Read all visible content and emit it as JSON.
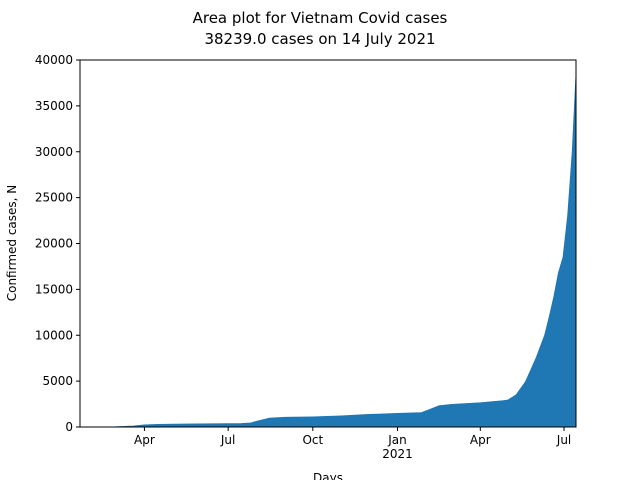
{
  "chart_data": {
    "type": "area",
    "title": "Area plot for Vietnam Covid cases",
    "subtitle": "38239.0 cases on 14 July 2021",
    "xlabel": "Days",
    "ylabel": "Confirmed cases, N",
    "color": "#1f77b4",
    "x": [
      "2020-01-22",
      "2020-03-01",
      "2020-03-20",
      "2020-04-01",
      "2020-04-15",
      "2020-05-15",
      "2020-06-15",
      "2020-07-15",
      "2020-07-25",
      "2020-08-01",
      "2020-08-15",
      "2020-09-01",
      "2020-10-01",
      "2020-11-01",
      "2020-12-01",
      "2021-01-01",
      "2021-01-27",
      "2021-02-05",
      "2021-02-15",
      "2021-03-01",
      "2021-04-01",
      "2021-04-25",
      "2021-05-01",
      "2021-05-10",
      "2021-05-20",
      "2021-05-25",
      "2021-06-01",
      "2021-06-10",
      "2021-06-15",
      "2021-06-20",
      "2021-06-25",
      "2021-06-30",
      "2021-07-05",
      "2021-07-10",
      "2021-07-14"
    ],
    "values": [
      0,
      16,
      90,
      218,
      268,
      314,
      334,
      373,
      417,
      620,
      960,
      1044,
      1095,
      1200,
      1361,
      1465,
      1551,
      1900,
      2300,
      2448,
      2632,
      2852,
      2928,
      3500,
      4900,
      6000,
      7600,
      10000,
      12000,
      14200,
      16800,
      18500,
      23000,
      30000,
      38239
    ],
    "xlim": [
      "2020-01-22",
      "2021-07-14"
    ],
    "xticks": [
      {
        "value": "2020-04-01",
        "label": "Apr"
      },
      {
        "value": "2020-07-01",
        "label": "Jul"
      },
      {
        "value": "2020-10-01",
        "label": "Oct"
      },
      {
        "value": "2021-01-01",
        "label": "Jan\n2021"
      },
      {
        "value": "2021-04-01",
        "label": "Apr"
      },
      {
        "value": "2021-07-01",
        "label": "Jul"
      }
    ],
    "ylim": [
      0,
      40000
    ],
    "yticks": [
      0,
      5000,
      10000,
      15000,
      20000,
      25000,
      30000,
      35000,
      40000
    ]
  }
}
